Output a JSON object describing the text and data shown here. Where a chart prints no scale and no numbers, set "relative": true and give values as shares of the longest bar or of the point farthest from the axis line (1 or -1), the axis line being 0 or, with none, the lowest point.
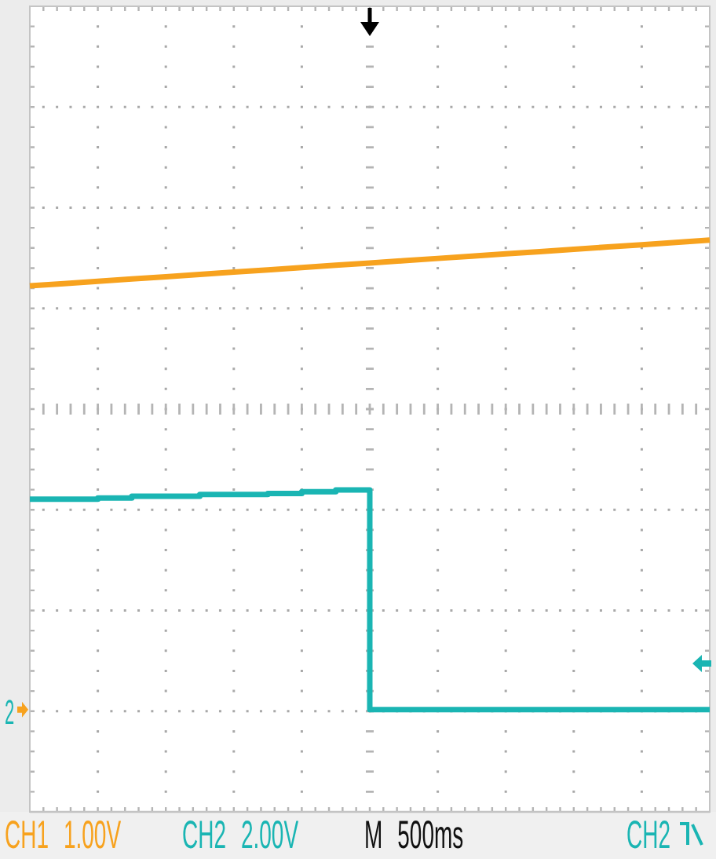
{
  "chart_data": {
    "type": "line",
    "relative": true,
    "categories": [
      null,
      null,
      null,
      null,
      null,
      null,
      null,
      null,
      null,
      null,
      null,
      null,
      null,
      null,
      null,
      null,
      null,
      null,
      null,
      null,
      null
    ],
    "series": [
      {
        "color": "#f7a21e",
        "values": [
          0.92,
          0.924,
          0.928,
          0.932,
          0.936,
          0.94,
          0.944,
          0.948,
          0.952,
          0.956,
          0.96,
          0.964,
          0.968,
          0.972,
          0.976,
          0.98,
          0.984,
          0.988,
          0.992,
          0.996,
          1.0
        ]
      },
      {
        "type": "step",
        "color": "#1ab5b3",
        "values": [
          0.547,
          0.547,
          0.549,
          0.552,
          0.552,
          0.555,
          0.555,
          0.557,
          0.56,
          0.563,
          0.179,
          0.179,
          0.179,
          0.179,
          0.179,
          0.179,
          0.179,
          0.179,
          0.179,
          0.179,
          0.179
        ]
      }
    ],
    "annotations": [
      "CH1 1.00V",
      "CH2 2.00V",
      "M 500ms",
      "CH2",
      "2"
    ]
  }
}
